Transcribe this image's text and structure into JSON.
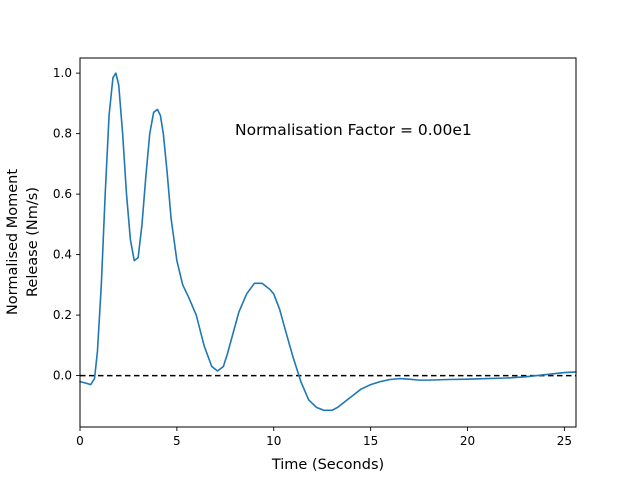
{
  "chart_data": {
    "type": "line",
    "title": "",
    "xlabel": "Time (Seconds)",
    "ylabel_lines": [
      "Normalised Moment",
      "Release (Nm/s)"
    ],
    "xlim": [
      0,
      25.6
    ],
    "ylim": [
      -0.17,
      1.05
    ],
    "xticks": [
      0,
      5,
      10,
      15,
      20,
      25
    ],
    "yticks": [
      0.0,
      0.2,
      0.4,
      0.6,
      0.8,
      1.0
    ],
    "ytick_labels": [
      "0.0",
      "0.2",
      "0.4",
      "0.6",
      "0.8",
      "1.0"
    ],
    "grid": false,
    "annotation": {
      "text": "Normalisation Factor = 0.00e1",
      "x": 8.0,
      "y": 0.815
    },
    "reference_line": {
      "y": 0.0,
      "style": "dashed",
      "color": "#000000"
    },
    "series": [
      {
        "color": "#1f77b4",
        "x": [
          0,
          0.3,
          0.55,
          0.75,
          0.9,
          1.1,
          1.3,
          1.5,
          1.7,
          1.85,
          2.0,
          2.2,
          2.4,
          2.6,
          2.8,
          3.0,
          3.2,
          3.4,
          3.6,
          3.8,
          4.0,
          4.15,
          4.3,
          4.5,
          4.7,
          5.0,
          5.3,
          5.6,
          6.0,
          6.4,
          6.8,
          7.1,
          7.4,
          7.6,
          7.9,
          8.2,
          8.6,
          9.0,
          9.4,
          9.8,
          10.0,
          10.3,
          10.6,
          11.0,
          11.4,
          11.8,
          12.2,
          12.6,
          13.0,
          13.3,
          13.7,
          14.1,
          14.5,
          15.0,
          15.5,
          16.0,
          16.5,
          17.0,
          17.5,
          18.0,
          19.0,
          20.0,
          21.0,
          22.0,
          23.0,
          24.0,
          25.0,
          25.6
        ],
        "y": [
          -0.02,
          -0.025,
          -0.03,
          -0.01,
          0.08,
          0.3,
          0.6,
          0.86,
          0.985,
          1.0,
          0.96,
          0.8,
          0.6,
          0.45,
          0.38,
          0.39,
          0.5,
          0.66,
          0.8,
          0.87,
          0.88,
          0.86,
          0.8,
          0.67,
          0.52,
          0.38,
          0.3,
          0.26,
          0.2,
          0.1,
          0.03,
          0.015,
          0.03,
          0.07,
          0.14,
          0.21,
          0.27,
          0.305,
          0.305,
          0.285,
          0.27,
          0.22,
          0.15,
          0.06,
          -0.02,
          -0.08,
          -0.105,
          -0.115,
          -0.115,
          -0.105,
          -0.085,
          -0.065,
          -0.045,
          -0.03,
          -0.02,
          -0.013,
          -0.01,
          -0.012,
          -0.015,
          -0.015,
          -0.013,
          -0.012,
          -0.01,
          -0.008,
          -0.004,
          0.003,
          0.01,
          0.012
        ]
      }
    ]
  }
}
